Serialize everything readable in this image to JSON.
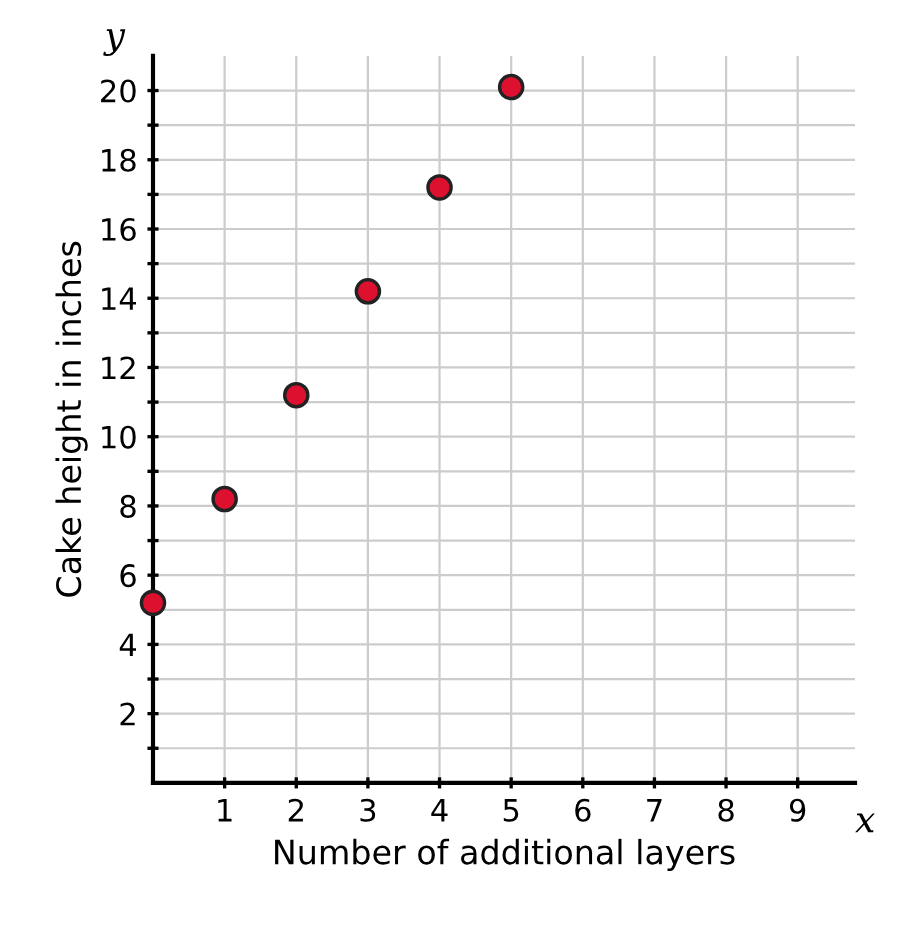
{
  "chart_data": {
    "type": "scatter",
    "xlabel": "Number of additional layers",
    "ylabel": "Cake height in inches",
    "annotations": [
      "x",
      "y"
    ],
    "x": [
      0,
      1,
      2,
      3,
      4,
      5
    ],
    "series": [
      {
        "color": "#dd1030",
        "values": [
          5.2,
          8.2,
          11.2,
          14.2,
          17.2,
          20.1
        ]
      }
    ],
    "xlim": [
      0,
      9.8
    ],
    "ylim": [
      0,
      21
    ],
    "xticks": [
      1,
      2,
      3,
      4,
      5,
      6,
      7,
      8,
      9
    ],
    "yticks": [
      {
        "value": 1,
        "label": null
      },
      2,
      {
        "value": 3,
        "label": null
      },
      4,
      {
        "value": 5,
        "label": null
      },
      6,
      {
        "value": 7,
        "label": null
      },
      8,
      {
        "value": 9,
        "label": null
      },
      10,
      {
        "value": 11,
        "label": null
      },
      12,
      {
        "value": 13,
        "label": null
      },
      14,
      {
        "value": 15,
        "label": null
      },
      16,
      {
        "value": 17,
        "label": null
      },
      18,
      {
        "value": 19,
        "label": null
      },
      20
    ],
    "grid": true,
    "marker": "circle"
  }
}
